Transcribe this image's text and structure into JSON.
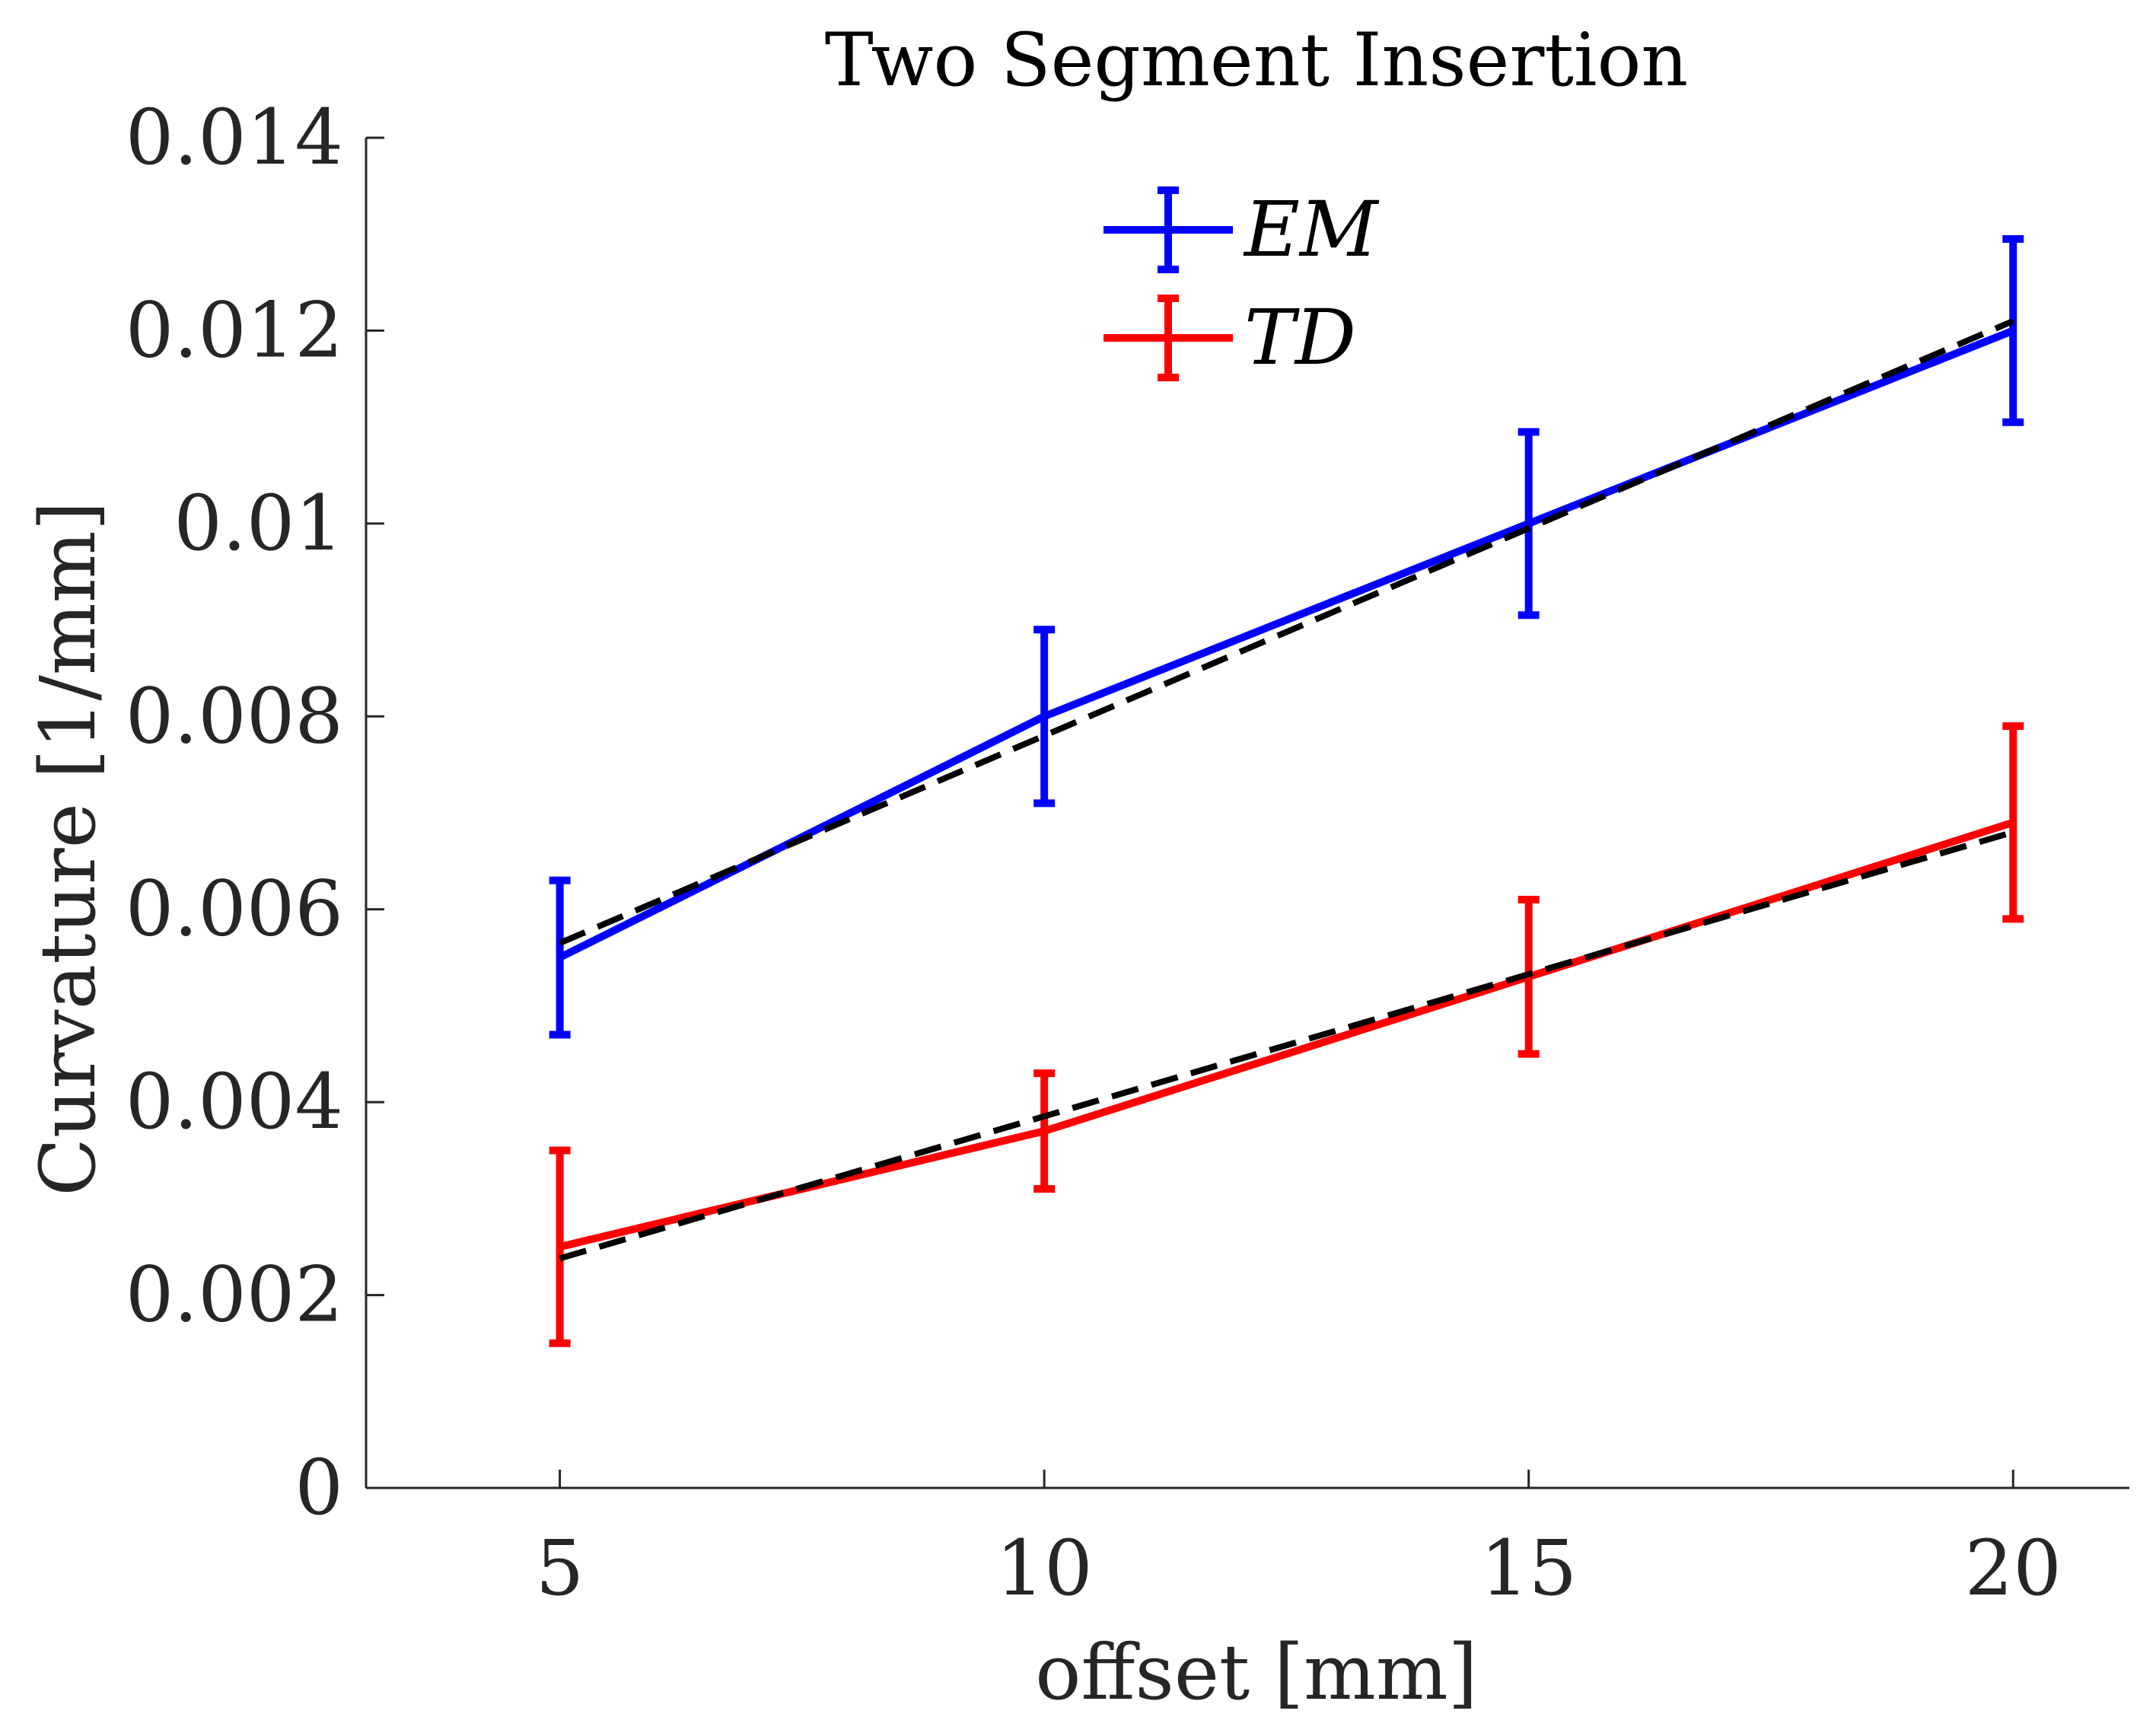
{
  "chart_data": {
    "type": "line",
    "title": "Two Segment Insertion",
    "xlabel": "offset [mm]",
    "ylabel": "Curvature [1/mm]",
    "xlim": [
      3,
      21.2
    ],
    "ylim": [
      0,
      0.014
    ],
    "xticks": [
      5,
      10,
      15,
      20
    ],
    "xtick_labels": [
      "5",
      "10",
      "15",
      "20"
    ],
    "yticks": [
      0,
      0.002,
      0.004,
      0.006,
      0.008,
      0.01,
      0.012,
      0.014
    ],
    "ytick_labels": [
      "0",
      "0.002",
      "0.004",
      "0.006",
      "0.008",
      "0.01",
      "0.012",
      "0.014"
    ],
    "legend_position": "top-center",
    "series": [
      {
        "name": "EM",
        "color": "#0000ff",
        "x": [
          5,
          10,
          15,
          20
        ],
        "y": [
          0.0055,
          0.008,
          0.01,
          0.012
        ],
        "err": [
          0.0008,
          0.0009,
          0.00095,
          0.00095
        ],
        "fit": {
          "color": "#000000",
          "style": "dashed",
          "y_start": 0.00565,
          "y_end": 0.0121
        }
      },
      {
        "name": "TD",
        "color": "#ff0000",
        "x": [
          5,
          10,
          15,
          20
        ],
        "y": [
          0.0025,
          0.0037,
          0.0053,
          0.0069
        ],
        "err": [
          0.001,
          0.0006,
          0.0008,
          0.001
        ],
        "fit": {
          "color": "#000000",
          "style": "dashed",
          "y_start": 0.00238,
          "y_end": 0.0068
        }
      }
    ]
  }
}
